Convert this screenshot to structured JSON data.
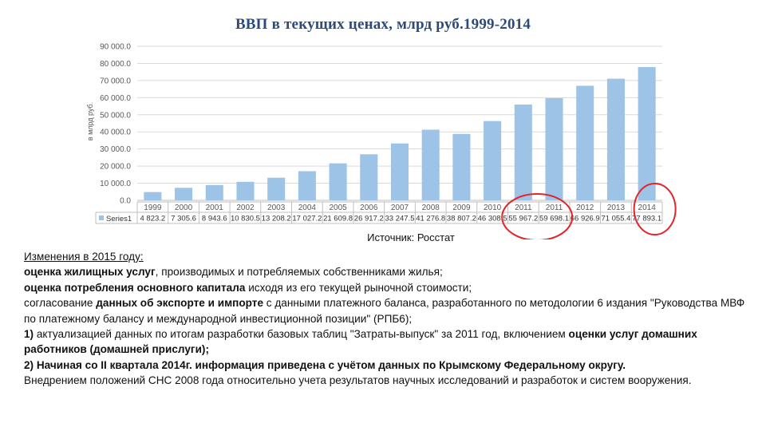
{
  "chart_data": {
    "type": "bar",
    "title": "ВВП в текущих ценах, млрд руб.1999-2014",
    "ylabel": "в млрд руб.",
    "ylim": [
      0,
      90000
    ],
    "yticks": [
      "0.0",
      "10 000.0",
      "20 000.0",
      "30 000.0",
      "40 000.0",
      "50 000.0",
      "60 000.0",
      "70 000.0",
      "80 000.0",
      "90 000.0"
    ],
    "grid": true,
    "legend": "data-table",
    "categories": [
      "1999",
      "2000",
      "2001",
      "2002",
      "2003",
      "2004",
      "2005",
      "2006",
      "2007",
      "2008",
      "2009",
      "2010",
      "2011",
      "2011",
      "2012",
      "2013",
      "2014"
    ],
    "series": [
      {
        "name": "Series1",
        "color": "#9dc3e6",
        "values": [
          4823.2,
          7305.6,
          8943.6,
          10830.5,
          13208.2,
          17027.2,
          21609.8,
          26917.2,
          33247.5,
          41276.8,
          38807.2,
          46308.5,
          55967.2,
          59698.1,
          66926.9,
          71055.4,
          77893.1
        ],
        "labels": [
          "4 823.2",
          "7 305.6",
          "8 943.6",
          "10 830.5",
          "13 208.2",
          "17 027.2",
          "21 609.8",
          "26 917.2",
          "33 247.5",
          "41 276.8",
          "38 807.2",
          "46 308.5",
          "55 967.2",
          "59 698.1",
          "66 926.9",
          "71 055.4",
          "77 893.1"
        ]
      }
    ],
    "highlight_color": "#e0262b"
  },
  "source": "Источник: Росстат",
  "notes": {
    "heading": "Изменения в 2015 году:",
    "l1_bold": "оценка жилищных услуг",
    "l1_rest": ", производимых и потребляемых собственниками жилья;",
    "l2_bold": "оценка потребления основного капитала",
    "l2_rest": " исходя из его текущей рыночной стоимости;",
    "l3_pre": "согласование ",
    "l3_bold": "данных об экспорте и импорте",
    "l3_rest": "  с данными платежного баланса, разработанного по методологии 6 издания \"Руководства МВФ по платежному балансу и международной инвестиционной позиции\" (РПБ6);",
    "l4_num": "1)",
    "l4_text": " актуализацией данных по итогам разработки базовых таблиц \"Затраты-выпуск\" за 2011 год, включением ",
    "l4_bold": "оценки услуг домашних работников (домашней прислуги);",
    "l5_bold": "2) Начиная со II квартала 2014г. информация приведена с учётом данных по Крымскому Федеральному округу.",
    "l6": "Внедрением положений СНС 2008 года относительно учета результатов научных исследований и разработок и систем вооружения."
  }
}
